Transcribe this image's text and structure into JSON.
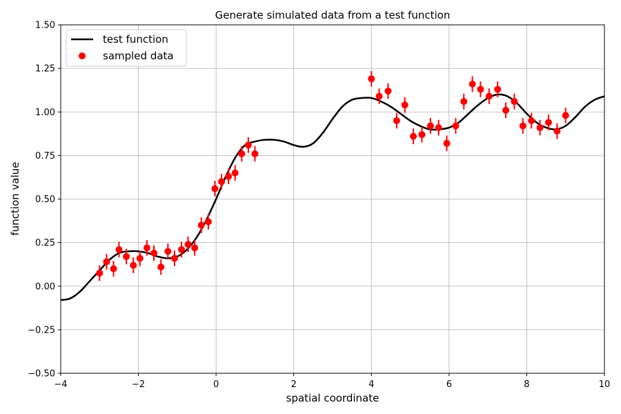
{
  "chart_data": {
    "type": "line",
    "title": "Generate simulated data from a test function",
    "xlabel": "spatial coordinate",
    "ylabel": "function value",
    "xlim": [
      -4,
      10
    ],
    "ylim": [
      -0.5,
      1.5
    ],
    "xticks": [
      -4,
      -2,
      0,
      2,
      4,
      6,
      8,
      10
    ],
    "xtick_labels": [
      "−4",
      "−2",
      "0",
      "2",
      "4",
      "6",
      "8",
      "10"
    ],
    "yticks": [
      -0.5,
      -0.25,
      0,
      0.25,
      0.5,
      0.75,
      1.0,
      1.25,
      1.5
    ],
    "ytick_labels": [
      "−0.50",
      "−0.25",
      "0.00",
      "0.25",
      "0.50",
      "0.75",
      "1.00",
      "1.25",
      "1.50"
    ],
    "grid": true,
    "legend_position": "top-left",
    "series": [
      {
        "name": "test function",
        "kind": "line",
        "color": "#000000",
        "x": [
          -4.0,
          -3.75,
          -3.5,
          -3.25,
          -3.0,
          -2.75,
          -2.5,
          -2.25,
          -2.0,
          -1.75,
          -1.5,
          -1.25,
          -1.0,
          -0.75,
          -0.5,
          -0.25,
          0.0,
          0.25,
          0.5,
          0.75,
          1.0,
          1.25,
          1.5,
          1.75,
          2.0,
          2.25,
          2.5,
          2.75,
          3.0,
          3.25,
          3.5,
          3.75,
          4.0,
          4.25,
          4.5,
          4.75,
          5.0,
          5.25,
          5.5,
          5.75,
          6.0,
          6.25,
          6.5,
          6.75,
          7.0,
          7.25,
          7.5,
          7.75,
          8.0,
          8.25,
          8.5,
          8.75,
          9.0,
          9.25,
          9.5,
          9.75,
          10.0
        ],
        "y": [
          -0.08,
          -0.07,
          -0.03,
          0.03,
          0.09,
          0.15,
          0.19,
          0.2,
          0.2,
          0.19,
          0.17,
          0.16,
          0.17,
          0.21,
          0.28,
          0.38,
          0.5,
          0.63,
          0.74,
          0.81,
          0.83,
          0.84,
          0.84,
          0.83,
          0.81,
          0.8,
          0.82,
          0.88,
          0.96,
          1.03,
          1.07,
          1.08,
          1.08,
          1.06,
          1.03,
          0.99,
          0.95,
          0.92,
          0.9,
          0.9,
          0.91,
          0.94,
          0.99,
          1.04,
          1.08,
          1.1,
          1.09,
          1.05,
          0.99,
          0.94,
          0.91,
          0.9,
          0.92,
          0.97,
          1.03,
          1.07,
          1.09
        ]
      },
      {
        "name": "sampled data",
        "kind": "scatter",
        "color": "#ff0000",
        "error": 0.045,
        "x": [
          -3.0,
          -2.82,
          -2.64,
          -2.5,
          -2.31,
          -2.13,
          -1.96,
          -1.78,
          -1.6,
          -1.42,
          -1.24,
          -1.07,
          -0.89,
          -0.72,
          -0.55,
          -0.38,
          -0.2,
          -0.03,
          0.14,
          0.32,
          0.49,
          0.66,
          0.83,
          1.0,
          4.0,
          4.2,
          4.43,
          4.65,
          4.86,
          5.08,
          5.3,
          5.52,
          5.73,
          5.94,
          6.17,
          6.38,
          6.6,
          6.81,
          7.03,
          7.25,
          7.46,
          7.68,
          7.9,
          8.12,
          8.34,
          8.56,
          8.78,
          9.0
        ],
        "y": [
          0.075,
          0.14,
          0.1,
          0.21,
          0.17,
          0.12,
          0.16,
          0.22,
          0.19,
          0.11,
          0.2,
          0.16,
          0.21,
          0.24,
          0.22,
          0.35,
          0.37,
          0.56,
          0.6,
          0.63,
          0.65,
          0.76,
          0.81,
          0.76,
          1.19,
          1.09,
          1.12,
          0.95,
          1.04,
          0.86,
          0.87,
          0.92,
          0.91,
          0.82,
          0.92,
          1.06,
          1.16,
          1.13,
          1.09,
          1.13,
          1.01,
          1.06,
          0.92,
          0.95,
          0.91,
          0.94,
          0.89,
          0.98
        ]
      }
    ]
  }
}
